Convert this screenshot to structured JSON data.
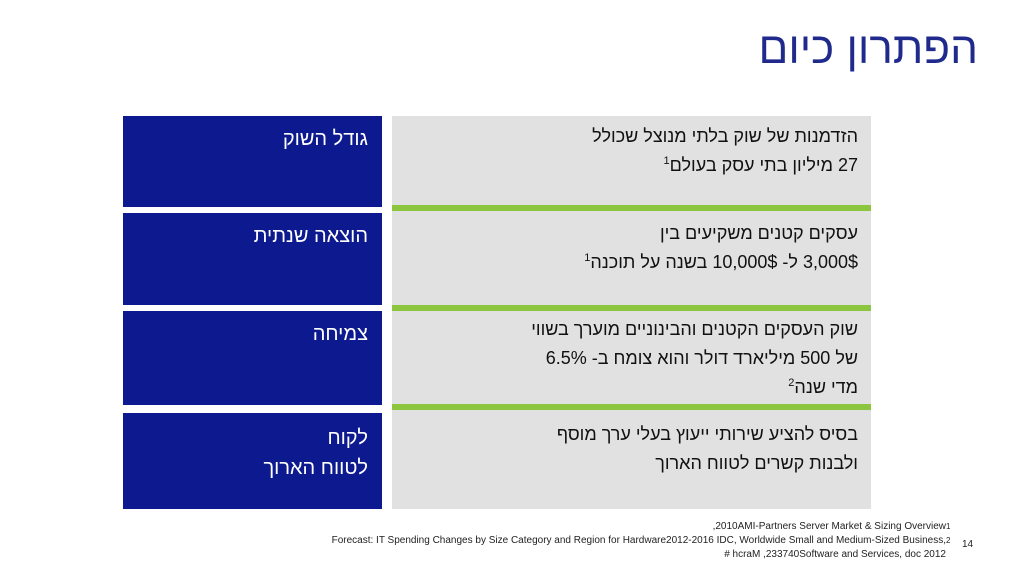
{
  "slide": {
    "title": "הפתרון כיום",
    "page_number": "14",
    "colors": {
      "title": "#1f2a8c",
      "label_box": "#0d1a8f",
      "panel": "#e1e1e1",
      "separator": "#8cc63f"
    }
  },
  "rows": [
    {
      "label_lines": [
        "גודל השוק"
      ],
      "desc_lines": [
        {
          "text": "הזדמנות של שוק בלתי מנוצל שכולל",
          "sup": ""
        },
        {
          "text": "27 מיליון בתי עסק בעולם",
          "sup": "1"
        }
      ]
    },
    {
      "label_lines": [
        "הוצאה שנתית"
      ],
      "desc_lines": [
        {
          "text": "עסקים קטנים משקיעים בין",
          "sup": ""
        },
        {
          "text": "3,000$ ל- 10,000$ בשנה על תוכנה",
          "sup": "1"
        }
      ]
    },
    {
      "label_lines": [
        "צמיחה"
      ],
      "desc_lines": [
        {
          "text": "שוק העסקים הקטנים והבינוניים מוערך בשווי",
          "sup": ""
        },
        {
          "text": "של 500 מיליארד דולר והוא צומח ב- 6.5%",
          "sup": ""
        },
        {
          "text": "מדי שנה",
          "sup": "2"
        }
      ]
    },
    {
      "label_lines": [
        "לקוח",
        "לטווח הארוך"
      ],
      "desc_lines": [
        {
          "text": "בסיס להציע שירותי ייעוץ בעלי ערך מוסף",
          "sup": ""
        },
        {
          "text": "ולבנות קשרים לטווח הארוך",
          "sup": ""
        }
      ]
    }
  ],
  "footnotes": {
    "marks": [
      "1",
      "2"
    ],
    "lines": [
      "2010AMI-Partners Server Market & Sizing Overview,",
      ",Forecast: IT Spending Changes by Size Category and Region for Hardware2012-2016 IDC, Worldwide Small and Medium-Sized Business",
      "2012 hcraM ,233740Software and Services, doc #"
    ]
  }
}
